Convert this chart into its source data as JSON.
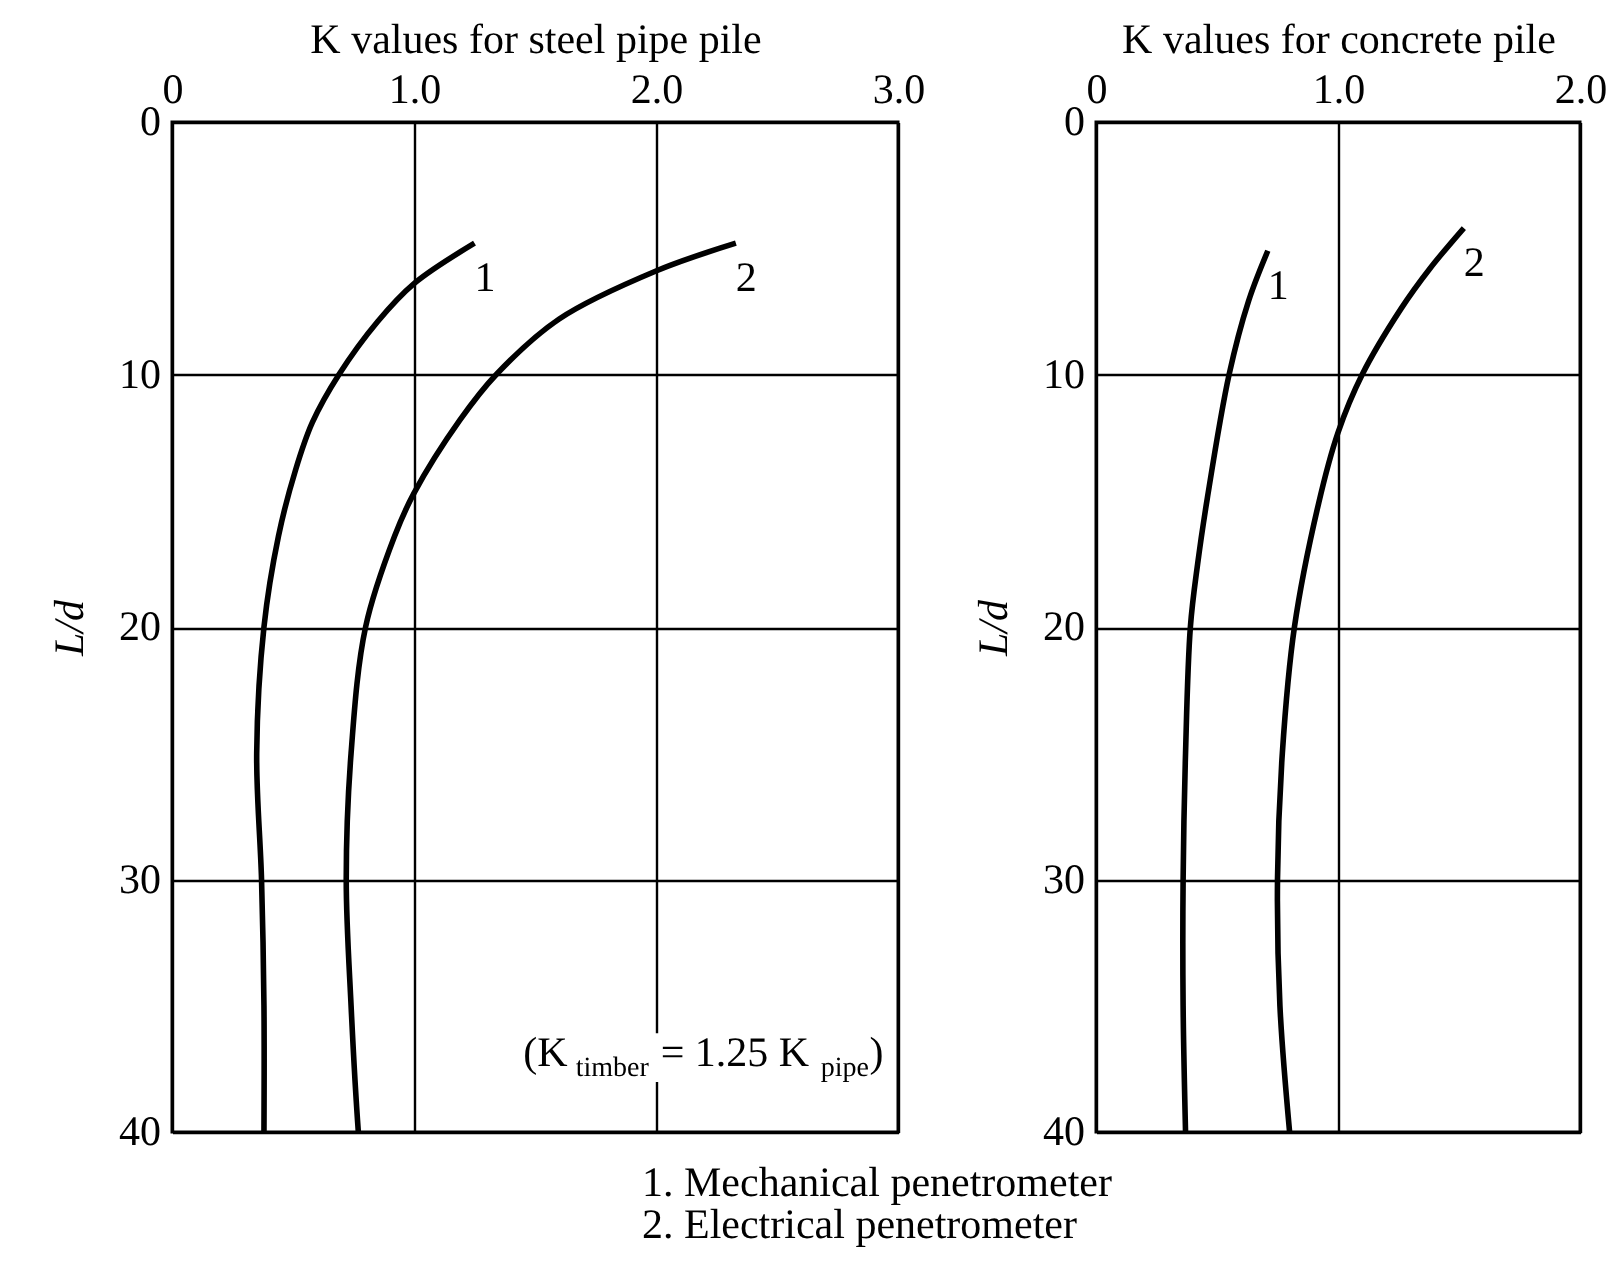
{
  "chart_data": [
    {
      "type": "line",
      "xlabel": "K values for steel pipe pile",
      "ylabel": "L/d",
      "xlim": [
        0,
        3
      ],
      "xticks": [
        0,
        {
          "value": 1,
          "label": "1.0"
        },
        {
          "value": 2,
          "label": "2.0"
        },
        {
          "value": 3,
          "label": "3.0"
        }
      ],
      "ylim": [
        40,
        0
      ],
      "yticks": [
        0,
        10,
        20,
        30,
        40
      ],
      "grid": true,
      "series": [
        {
          "name": "1",
          "color": "#000000",
          "x": [
            1.25,
            1.0,
            0.85,
            0.69,
            0.58,
            0.51,
            0.44,
            0.38,
            0.35,
            0.37,
            0.38,
            0.38
          ],
          "values": [
            4.8,
            6.4,
            7.9,
            10,
            11.9,
            13.8,
            16.4,
            20,
            25,
            30,
            35,
            40
          ]
        },
        {
          "name": "2",
          "color": "#000000",
          "x": [
            2.33,
            2.0,
            1.6,
            1.34,
            1.19,
            1.0,
            0.92,
            0.8,
            0.74,
            0.72,
            0.74,
            0.77
          ],
          "values": [
            4.8,
            5.9,
            7.8,
            10,
            11.8,
            14.7,
            16.4,
            20,
            25,
            30,
            35,
            40
          ]
        }
      ],
      "annotations": [
        "(K $_{timber}$ = 1.25 K $_{pipe}$)"
      ]
    },
    {
      "type": "line",
      "xlabel": "K values for concrete pile",
      "ylabel": "L/d",
      "xlim": [
        0,
        2
      ],
      "xticks": [
        0,
        {
          "value": 1,
          "label": "1.0"
        },
        {
          "value": 2,
          "label": "2.0"
        }
      ],
      "ylim": [
        40,
        0
      ],
      "yticks": [
        0,
        10,
        20,
        30,
        40
      ],
      "grid": true,
      "series": [
        {
          "name": "1",
          "color": "#000000",
          "x": [
            0.71,
            0.63,
            0.55,
            0.46,
            0.42,
            0.39,
            0.37,
            0.36,
            0.36,
            0.37
          ],
          "values": [
            5.1,
            7.1,
            10,
            14.9,
            17.5,
            20,
            25,
            30,
            35,
            40
          ]
        },
        {
          "name": "2",
          "color": "#000000",
          "x": [
            1.52,
            1.38,
            1.26,
            1.1,
            1.0,
            0.92,
            0.82,
            0.77,
            0.75,
            0.76,
            0.8
          ],
          "values": [
            4.2,
            5.8,
            7.4,
            10,
            12.3,
            15.1,
            20,
            25,
            30,
            35,
            40
          ]
        }
      ]
    },
    {
      "type": "other",
      "annotations": [
        "1. Mechanical penetrometer",
        "2. Electrical penetrometer"
      ]
    }
  ]
}
